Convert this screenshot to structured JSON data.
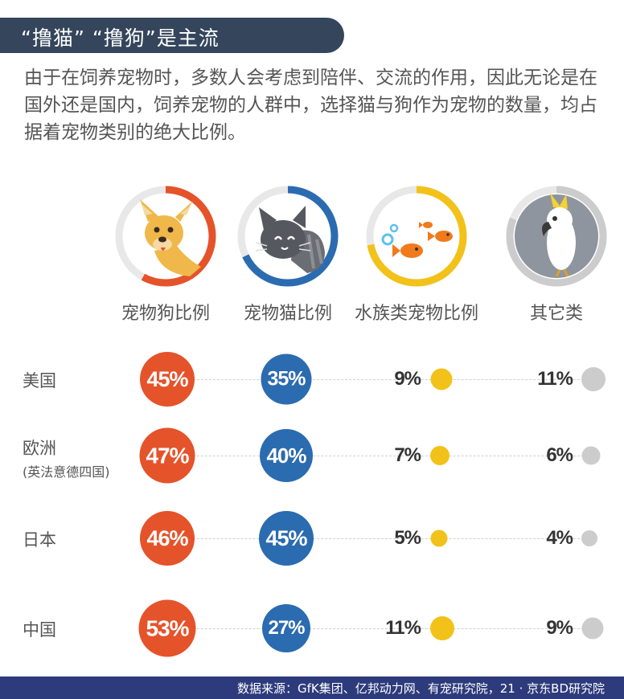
{
  "title": "“撸猫”  “撸狗”是主流",
  "intro": "由于在饲养宠物时，多数人会考虑到陪伴、交流的作用，因此无论是在国外还是国内，饲养宠物的人群中，选择猫与狗作为宠物的数量，均占据着宠物类别的绝大比例。",
  "source": "数据来源：GfK集团、亿邦动力网、有宠研究院，21 · 京东BD研究院",
  "colors": {
    "dog": "#e5532b",
    "cat": "#2b6bb0",
    "fish": "#f2c21a",
    "other": "#cccccc",
    "track": "#e8e8e8",
    "title_bg": "#34455c",
    "footer_bg": "#2d3b7c"
  },
  "icons": {
    "dog": "dog-icon",
    "cat": "cat-icon",
    "fish": "fish-icon",
    "other": "parrot-icon"
  },
  "chart_data": {
    "type": "table",
    "categories": [
      "宠物狗比例",
      "宠物猫比例",
      "水族类宠物比例",
      "其它类"
    ],
    "regions": [
      {
        "name": "美国",
        "sub": ""
      },
      {
        "name": "欧洲",
        "sub": "(英法意德四国)"
      },
      {
        "name": "日本",
        "sub": ""
      },
      {
        "name": "中国",
        "sub": ""
      }
    ],
    "series": [
      {
        "name": "宠物狗比例",
        "values": [
          45,
          47,
          46,
          53
        ],
        "labels": [
          "45%",
          "47%",
          "46%",
          "53%"
        ]
      },
      {
        "name": "宠物猫比例",
        "values": [
          35,
          40,
          45,
          27
        ],
        "labels": [
          "35%",
          "40%",
          "45%",
          "27%"
        ]
      },
      {
        "name": "水族类宠物比例",
        "values": [
          9,
          7,
          5,
          11
        ],
        "labels": [
          "9%",
          "7%",
          "5%",
          "11%"
        ]
      },
      {
        "name": "其它类",
        "values": [
          11,
          6,
          4,
          9
        ],
        "labels": [
          "11%",
          "6%",
          "4%",
          "9%"
        ]
      }
    ],
    "icon_ring_values": [
      58,
      68,
      72,
      81
    ]
  }
}
